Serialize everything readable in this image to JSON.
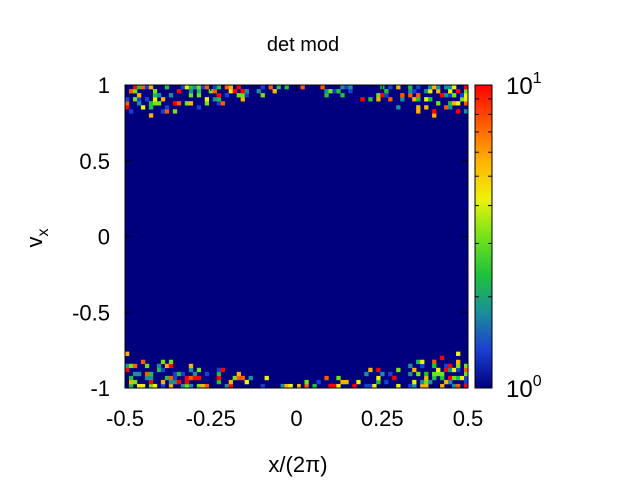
{
  "chart_data": {
    "type": "heatmap",
    "title": "det mod",
    "xlabel": "x/(2π)",
    "ylabel_main": "v",
    "ylabel_sub": "x",
    "xlim": [
      -0.5,
      0.5
    ],
    "ylim": [
      -1,
      1
    ],
    "x_ticks": [
      {
        "value": -0.5,
        "label": "-0.5"
      },
      {
        "value": -0.25,
        "label": "-0.25"
      },
      {
        "value": 0,
        "label": "0"
      },
      {
        "value": 0.25,
        "label": "0.25"
      },
      {
        "value": 0.5,
        "label": "0.5"
      }
    ],
    "y_ticks": [
      {
        "value": 1,
        "label": "1"
      },
      {
        "value": 0.5,
        "label": "0.5"
      },
      {
        "value": 0,
        "label": "0"
      },
      {
        "value": -0.5,
        "label": "-0.5"
      },
      {
        "value": -1,
        "label": "-1"
      }
    ],
    "colorbar": {
      "scale": "log",
      "range": [
        1,
        10
      ],
      "ticks": [
        {
          "value": 10,
          "base": "10",
          "exp": "1"
        },
        {
          "value": 1,
          "base": "10",
          "exp": "0"
        }
      ],
      "colors": [
        "#00007f",
        "#1a3fd0",
        "#1a8f9a",
        "#1fc23a",
        "#74e21a",
        "#eef20a",
        "#ffb000",
        "#ff5a00",
        "#ff0000"
      ]
    },
    "background_value": 1,
    "grid": {
      "nx": 86,
      "ny": 75
    },
    "seed": 7,
    "bands": [
      {
        "v_min": 0.75,
        "v_max": 1.0
      },
      {
        "v_min": -1.0,
        "v_max": -0.75
      }
    ]
  }
}
